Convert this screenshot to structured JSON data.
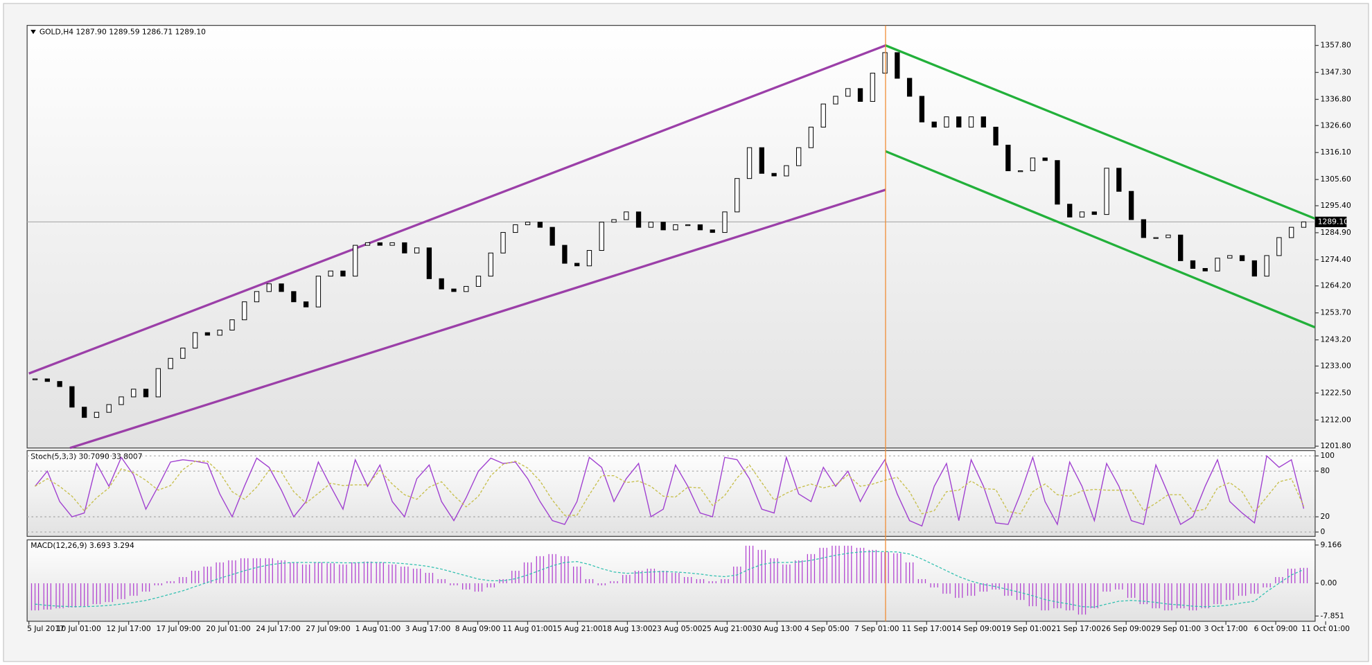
{
  "chart_data": {
    "type": "candlestick",
    "header": "GOLD,H4  1287.90 1289.59 1286.71 1289.10",
    "close": [
      1228,
      1227,
      1225,
      1217,
      1213,
      1215,
      1218,
      1221,
      1224,
      1221,
      1232,
      1236,
      1240,
      1246,
      1245,
      1247,
      1251,
      1258,
      1262,
      1265,
      1262,
      1258,
      1256,
      1268,
      1270,
      1268,
      1280,
      1281,
      1280,
      1281,
      1277,
      1279,
      1267,
      1263,
      1262,
      1264,
      1268,
      1277,
      1285,
      1288,
      1289,
      1287,
      1280,
      1273,
      1272,
      1278,
      1289,
      1290,
      1293,
      1287,
      1289,
      1286,
      1288,
      1288,
      1286,
      1285,
      1293,
      1306,
      1318,
      1308,
      1307,
      1311,
      1318,
      1326,
      1335,
      1338,
      1341,
      1336,
      1347,
      1355,
      1345,
      1338,
      1328,
      1326,
      1330,
      1326,
      1330,
      1326,
      1319,
      1309,
      1309,
      1314,
      1313,
      1296,
      1291,
      1293,
      1292,
      1310,
      1301,
      1290,
      1283,
      1283,
      1284,
      1274,
      1271,
      1270,
      1275,
      1276,
      1274,
      1268,
      1276,
      1283,
      1287,
      1289.1
    ],
    "ylim": [
      1201.1,
      1365.6
    ],
    "yticks": [
      {
        "value": 1357.8,
        "label": "1357.80"
      },
      {
        "value": 1347.3,
        "label": "1347.30"
      },
      {
        "value": 1336.8,
        "label": "1336.80"
      },
      {
        "value": 1326.6,
        "label": "1326.60"
      },
      {
        "value": 1316.1,
        "label": "1316.10"
      },
      {
        "value": 1305.6,
        "label": "1305.60"
      },
      {
        "value": 1295.4,
        "label": "1295.40"
      },
      {
        "value": 1284.9,
        "label": "1284.90"
      },
      {
        "value": 1274.4,
        "label": "1274.40"
      },
      {
        "value": 1264.2,
        "label": "1264.20"
      },
      {
        "value": 1253.7,
        "label": "1253.70"
      },
      {
        "value": 1243.2,
        "label": "1243.20"
      },
      {
        "value": 1233,
        "label": "1233.00"
      },
      {
        "value": 1222.5,
        "label": "1222.50"
      },
      {
        "value": 1212,
        "label": "1212.00"
      },
      {
        "value": 1201.8,
        "label": "1201.80"
      }
    ],
    "last_price": {
      "value": 1289.1,
      "label": "1289.10"
    },
    "x_labels": [
      "5 Jul 2017",
      "10 Jul 01:00",
      "12 Jul 17:00",
      "17 Jul 09:00",
      "20 Jul 01:00",
      "24 Jul 17:00",
      "27 Jul 09:00",
      "1 Aug 01:00",
      "3 Aug 17:00",
      "8 Aug 09:00",
      "11 Aug 01:00",
      "15 Aug 21:00",
      "18 Aug 13:00",
      "23 Aug 05:00",
      "25 Aug 21:00",
      "30 Aug 13:00",
      "4 Sep 05:00",
      "7 Sep 01:00",
      "11 Sep 17:00",
      "14 Sep 09:00",
      "19 Sep 01:00",
      "21 Sep 17:00",
      "26 Sep 09:00",
      "29 Sep 01:00",
      "3 Oct 17:00",
      "6 Oct 09:00",
      "11 Oct 01:00"
    ],
    "trendlines": [
      {
        "color": "#9b3fa8",
        "points": [
          [
            -0.5,
            1230.1
          ],
          [
            69.05,
            1357.8
          ]
        ]
      },
      {
        "color": "#9b3fa8",
        "points": [
          [
            2.84,
            1201.1
          ],
          [
            69.05,
            1301.6
          ]
        ]
      },
      {
        "color": "#22b03a",
        "points": [
          [
            69.05,
            1357.8
          ],
          [
            103.9,
            1290.4
          ]
        ]
      },
      {
        "color": "#22b03a",
        "points": [
          [
            69.05,
            1316.6
          ],
          [
            103.9,
            1248.1
          ]
        ]
      }
    ],
    "vline": 69.05,
    "indicators": [
      {
        "type": "stochastic",
        "header": "Stoch(5,3,3) 30.7090 33.8007",
        "ylim": [
          -5.7,
          106.9
        ],
        "yticks": [
          100,
          80,
          20,
          0
        ],
        "series": [
          {
            "color": "#a040d0",
            "values": [
              60,
              80,
              40,
              20,
              25,
              90,
              60,
              98,
              75,
              30,
              60,
              92,
              95,
              93,
              90,
              50,
              20,
              60,
              97,
              85,
              55,
              20,
              40,
              92,
              60,
              30,
              95,
              60,
              88,
              40,
              20,
              70,
              88,
              40,
              15,
              45,
              80,
              97,
              90,
              92,
              70,
              40,
              15,
              10,
              40,
              98,
              85,
              40,
              70,
              90,
              20,
              30,
              88,
              60,
              25,
              20,
              98,
              95,
              70,
              30,
              25,
              98,
              50,
              40,
              85,
              60,
              80,
              40,
              70,
              95,
              50,
              15,
              8,
              60,
              90,
              15,
              95,
              60,
              12,
              10,
              50,
              98,
              40,
              10,
              92,
              60,
              15,
              90,
              60,
              15,
              10,
              88,
              50,
              10,
              20,
              60,
              95,
              40,
              25,
              12,
              100,
              85,
              95,
              30.709
            ]
          },
          {
            "color": "#c8c050",
            "values": [
              60,
              70,
              60,
              47,
              28,
              45,
              58,
              83,
              78,
              68,
              55,
              61,
              82,
              93,
              93,
              78,
              53,
              43,
              59,
              81,
              79,
              53,
              38,
              51,
              64,
              61,
              62,
              62,
              81,
              63,
              49,
              43,
              59,
              66,
              48,
              33,
              47,
              74,
              89,
              93,
              84,
              67,
              42,
              22,
              22,
              49,
              74,
              74,
              65,
              67,
              60,
              47,
              46,
              59,
              58,
              35,
              48,
              71,
              88,
              65,
              42,
              51,
              58,
              63,
              58,
              62,
              75,
              60,
              63,
              68,
              72,
              53,
              24,
              28,
              53,
              55,
              67,
              57,
              56,
              27,
              24,
              53,
              63,
              49,
              47,
              54,
              56,
              55,
              55,
              55,
              28,
              38,
              49,
              49,
              27,
              30,
              58,
              65,
              53,
              26,
              46,
              66,
              70,
              33.8007
            ]
          }
        ]
      },
      {
        "type": "macd",
        "header": "MACD(12,26,9) 3.693 3.294",
        "ylim": [
          -9.1,
          10.4
        ],
        "yticks": [
          9.166,
          {
            "value": 0,
            "label": "0.00"
          },
          -7.851
        ],
        "histogram": {
          "color": "#b040d0",
          "values": [
            -6.5,
            -6.3,
            -6,
            -5.8,
            -5.5,
            -5,
            -4.5,
            -3.8,
            -3,
            -2,
            -0.5,
            0.5,
            1.5,
            3,
            4,
            5,
            5.5,
            6,
            6,
            6,
            5.5,
            5,
            4.5,
            5,
            4.8,
            4.5,
            5,
            5.2,
            5,
            4.5,
            4,
            3.5,
            2.5,
            1,
            -0.5,
            -1.5,
            -2,
            -1,
            1,
            3,
            5,
            6.5,
            7,
            6.5,
            4,
            1,
            -0.5,
            0.5,
            2,
            3,
            3.5,
            3,
            2.5,
            1.5,
            1,
            0.5,
            1,
            4,
            9,
            8,
            6,
            4.5,
            5.5,
            7,
            8.5,
            9,
            9,
            8.5,
            8,
            7.5,
            7.2,
            5,
            1,
            -1,
            -2.5,
            -3.5,
            -3,
            -2,
            -1.5,
            -3,
            -4,
            -5.5,
            -6.5,
            -6,
            -6.5,
            -7.5,
            -6,
            -2,
            -1.5,
            -3.5,
            -5,
            -6,
            -6.5,
            -6,
            -6.5,
            -6,
            -5,
            -4,
            -3,
            -2.5,
            -1,
            1.5,
            3.5,
            3.693
          ]
        },
        "signal": {
          "color": "#30c0b0",
          "values": [
            -5,
            -5.3,
            -5.5,
            -5.6,
            -5.6,
            -5.5,
            -5.3,
            -5,
            -4.6,
            -4.1,
            -3.4,
            -2.6,
            -1.8,
            -0.8,
            0.2,
            1.2,
            2.1,
            3,
            3.8,
            4.4,
            4.8,
            5,
            5,
            5,
            5,
            4.9,
            4.9,
            5,
            5,
            4.9,
            4.7,
            4.4,
            4,
            3.4,
            2.6,
            1.8,
            1,
            0.6,
            0.6,
            1.1,
            2,
            3.1,
            4.2,
            5,
            5.2,
            4.5,
            3.5,
            2.7,
            2.4,
            2.5,
            2.7,
            2.8,
            2.7,
            2.5,
            2.2,
            1.8,
            1.6,
            2,
            3.4,
            4.5,
            5,
            5,
            5.1,
            5.5,
            6.1,
            6.7,
            7.2,
            7.5,
            7.6,
            7.6,
            7.5,
            7,
            5.8,
            4.4,
            3,
            1.6,
            0.5,
            -0.3,
            -0.8,
            -1.5,
            -2.2,
            -3,
            -3.9,
            -4.5,
            -5,
            -5.6,
            -5.7,
            -5,
            -4.3,
            -4.1,
            -4.3,
            -4.6,
            -5,
            -5.2,
            -5.5,
            -5.6,
            -5.5,
            -5.2,
            -4.7,
            -4.3,
            -2,
            0,
            2,
            3.294
          ]
        }
      }
    ]
  }
}
